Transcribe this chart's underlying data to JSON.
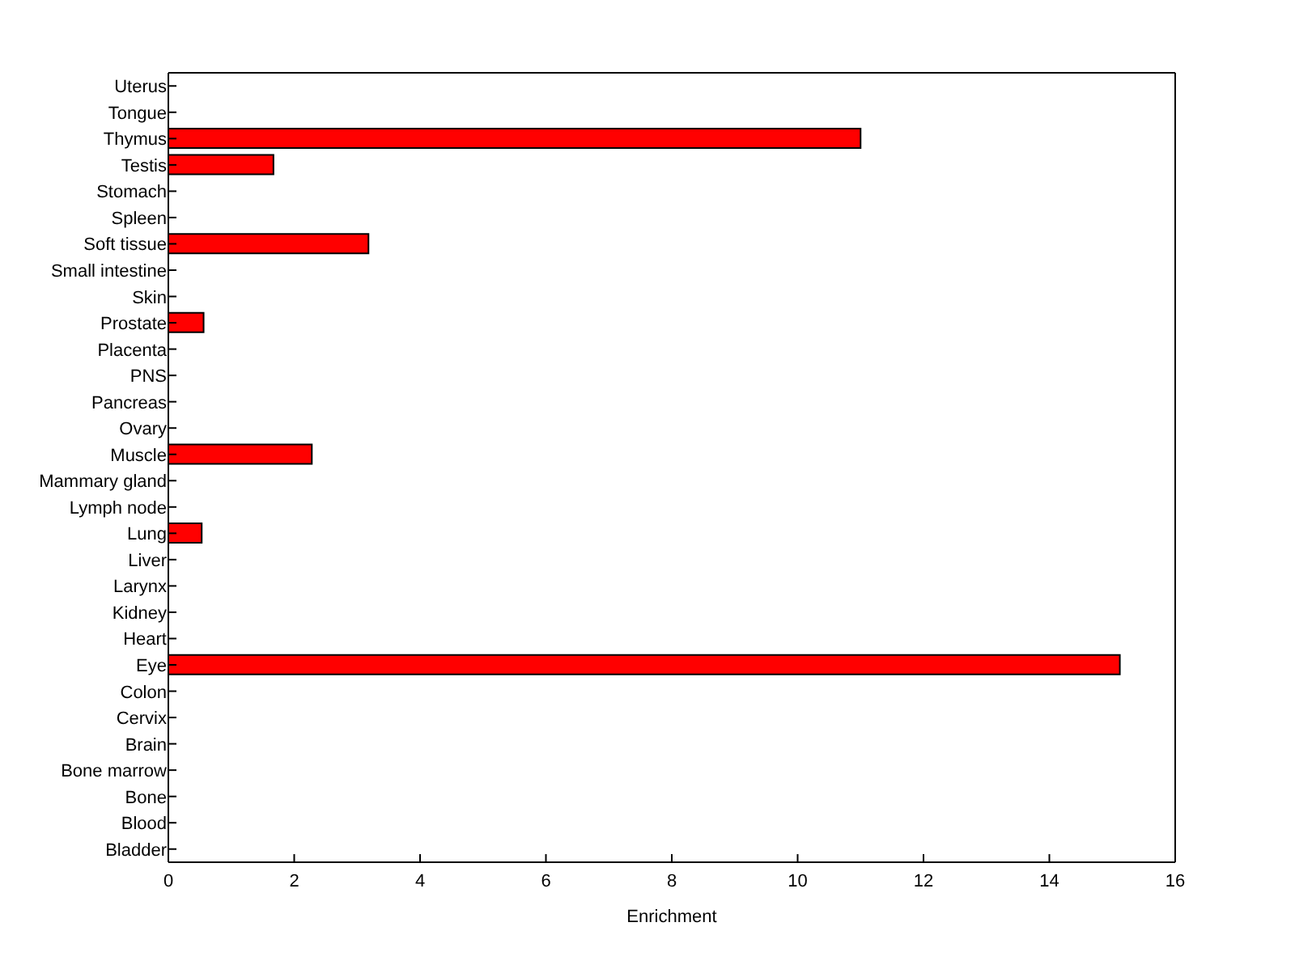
{
  "chart_data": {
    "type": "bar",
    "orientation": "horizontal",
    "xlabel": "Enrichment",
    "categories": [
      "Uterus",
      "Tongue",
      "Thymus",
      "Testis",
      "Stomach",
      "Spleen",
      "Soft tissue",
      "Small intestine",
      "Skin",
      "Prostate",
      "Placenta",
      "PNS",
      "Pancreas",
      "Ovary",
      "Muscle",
      "Mammary gland",
      "Lymph node",
      "Lung",
      "Liver",
      "Larynx",
      "Kidney",
      "Heart",
      "Eye",
      "Colon",
      "Cervix",
      "Brain",
      "Bone marrow",
      "Bone",
      "Blood",
      "Bladder"
    ],
    "values": [
      0,
      0,
      11.0,
      1.67,
      0,
      0,
      3.18,
      0,
      0,
      0.56,
      0,
      0,
      0,
      0,
      2.28,
      0,
      0,
      0.53,
      0,
      0,
      0,
      0,
      15.12,
      0,
      0,
      0,
      0,
      0,
      0,
      0
    ],
    "color": "#ff0000",
    "xlim": [
      0,
      16
    ],
    "xticks": [
      0,
      2,
      4,
      6,
      8,
      10,
      12,
      14,
      16
    ]
  }
}
